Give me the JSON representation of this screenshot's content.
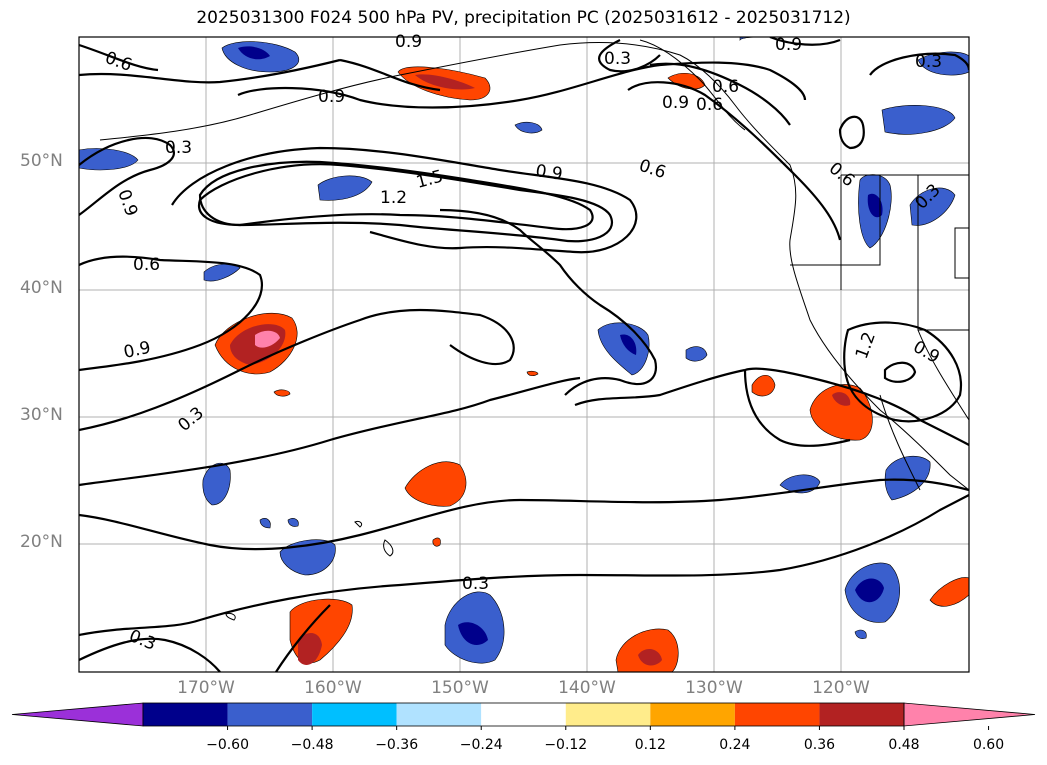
{
  "title": "2025031300 F024 500 hPa PV, precipitation PC (2025031612 - 2025031712)",
  "lat_labels": [
    "50°N",
    "40°N",
    "30°N",
    "20°N"
  ],
  "lon_labels": [
    "170°W",
    "160°W",
    "150°W",
    "140°W",
    "130°W",
    "120°W"
  ],
  "colorbar": {
    "ticks": [
      "−0.60",
      "−0.48",
      "−0.36",
      "−0.24",
      "−0.12",
      "0.12",
      "0.24",
      "0.36",
      "0.48",
      "0.60"
    ],
    "colors": [
      "#9b30d9",
      "#00008b",
      "#3a5fcd",
      "#00bfff",
      "#b0e2ff",
      "#ffffff",
      "#ffec8b",
      "#ffa500",
      "#ff4500",
      "#b22222",
      "#ff82ab"
    ]
  },
  "contour_labels": [
    "0.6",
    "0.9",
    "0.9",
    "0.3",
    "0.6",
    "0.3",
    "0.9",
    "0.6",
    "0.3",
    "1.5",
    "1.2",
    "0.9",
    "0.6",
    "0.9",
    "0.6",
    "0.9",
    "0.3",
    "0.3",
    "0.3",
    "0.6",
    "0.9",
    "0.3",
    "1.2",
    "0.9"
  ]
}
